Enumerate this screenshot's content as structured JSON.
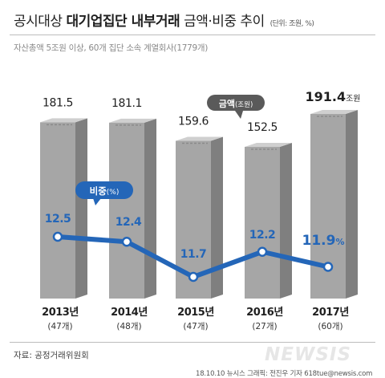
{
  "header": {
    "title_lead": "공시대상",
    "title_bold": "대기업집단 내부거래",
    "title_tail": "금액·비중 추이",
    "unit_note": "(단위: 조원, %)",
    "subtitle": "자산총액 5조원 이상, 60개 집단 소속 계열회사(1779개)"
  },
  "chart_data": {
    "type": "bar",
    "categories": [
      "2013년",
      "2014년",
      "2015년",
      "2016년",
      "2017년"
    ],
    "sublabels": [
      "(47개)",
      "(48개)",
      "(47개)",
      "(27개)",
      "(60개)"
    ],
    "series": [
      {
        "name": "금액(조원)",
        "values": [
          181.5,
          181.1,
          159.6,
          152.5,
          191.4
        ]
      },
      {
        "name": "비중(%)",
        "values": [
          12.5,
          12.4,
          11.7,
          12.2,
          11.9
        ]
      }
    ],
    "bar_value_labels": [
      "181.5",
      "181.1",
      "159.6",
      "152.5",
      "191.4"
    ],
    "last_bar_unit": "조원",
    "line_value_labels": [
      "12.5",
      "12.4",
      "11.7",
      "12.2",
      "11.9"
    ],
    "last_line_unit": "%",
    "bar_legend_label": "금액",
    "bar_legend_unit": "(조원)",
    "line_legend_label": "비중",
    "line_legend_unit": "(%)",
    "grid": false
  },
  "footer": {
    "source": "자료: 공정거래위원회",
    "credit": "18.10.10 뉴시스 그래픽: 전진우 기자 618tue@newsis.com",
    "watermark": "NEWSIS"
  },
  "colors": {
    "bar_front": "#a6a6a6",
    "bar_side": "#7f7f7f",
    "bar_top": "#cfcfcf",
    "line": "#2466b8",
    "callout_bar": "#5a5a5a",
    "callout_line": "#2466b8",
    "marker_fill": "#ffffff",
    "text": "#1f1f1f"
  }
}
